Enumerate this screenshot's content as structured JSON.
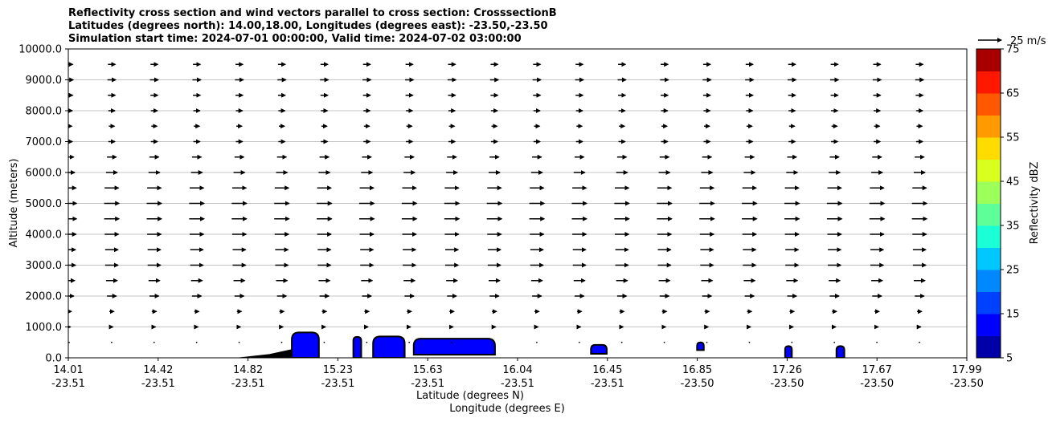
{
  "title_lines": [
    "Reflectivity cross section and wind vectors parallel to cross section: CrosssectionB",
    "Latitudes (degrees north): 14.00,18.00, Longitudes (degrees east): -23.50,-23.50",
    "Simulation start time: 2024-07-01 00:00:00, Valid time: 2024-07-02 03:00:00"
  ],
  "chart_data": {
    "type": "contour-quiver",
    "ylabel": "Altitude (meters)",
    "xlabel_lines": [
      "Latitude (degrees N)",
      "Longitude (degrees E)"
    ],
    "x_ticks": [
      {
        "lat": "14.01",
        "lon": "-23.51"
      },
      {
        "lat": "14.42",
        "lon": "-23.51"
      },
      {
        "lat": "14.82",
        "lon": "-23.51"
      },
      {
        "lat": "15.23",
        "lon": "-23.51"
      },
      {
        "lat": "15.63",
        "lon": "-23.51"
      },
      {
        "lat": "16.04",
        "lon": "-23.51"
      },
      {
        "lat": "16.45",
        "lon": "-23.51"
      },
      {
        "lat": "16.85",
        "lon": "-23.50"
      },
      {
        "lat": "17.26",
        "lon": "-23.50"
      },
      {
        "lat": "17.67",
        "lon": "-23.50"
      },
      {
        "lat": "17.99",
        "lon": "-23.50"
      }
    ],
    "xlim": [
      14.01,
      17.99
    ],
    "ylim": [
      0,
      10000
    ],
    "y_ticks": [
      0,
      1000,
      2000,
      3000,
      4000,
      5000,
      6000,
      7000,
      8000,
      9000,
      10000
    ],
    "y_tick_labels": [
      "0.0",
      "1000.0",
      "2000.0",
      "3000.0",
      "4000.0",
      "5000.0",
      "6000.0",
      "7000.0",
      "8000.0",
      "9000.0",
      "10000.0"
    ],
    "grid": "horizontal",
    "colorbar": {
      "label": "Reflectivity dBZ",
      "levels": [
        5,
        10,
        15,
        20,
        25,
        30,
        35,
        40,
        45,
        50,
        55,
        60,
        65,
        70,
        75
      ],
      "tick_values": [
        5,
        15,
        25,
        35,
        45,
        55,
        65,
        75
      ],
      "tick_labels": [
        "5",
        "15",
        "25",
        "35",
        "45",
        "55",
        "65",
        "75"
      ],
      "colors": [
        "#0000a8",
        "#0000ff",
        "#0040ff",
        "#0088ff",
        "#00c8ff",
        "#1affd6",
        "#5eff98",
        "#9cff5a",
        "#d8ff1e",
        "#ffdc00",
        "#ff9a00",
        "#ff5800",
        "#ff1800",
        "#a80000"
      ]
    },
    "quiver_key": {
      "label": "25 m/s",
      "speed": 25
    },
    "vector_altitudes": [
      500,
      1000,
      1500,
      2000,
      2500,
      3000,
      3500,
      4000,
      4500,
      5000,
      5500,
      6000,
      6500,
      7000,
      7500,
      8000,
      8500,
      9000,
      9500
    ],
    "vector_speeds": [
      2,
      3,
      5,
      10,
      12,
      14,
      14,
      15,
      16,
      16,
      15,
      12,
      10,
      7,
      6,
      7,
      8,
      9,
      8
    ],
    "terrain": {
      "lat": [
        14.75,
        14.9,
        15.0,
        15.05,
        15.08
      ],
      "alt": [
        0,
        120,
        280,
        380,
        0
      ]
    },
    "cells": [
      {
        "lat": 15.06,
        "alt_bottom": 0,
        "alt_top": 820,
        "width": 0.12,
        "dbz": 10
      },
      {
        "lat": 15.29,
        "alt_bottom": 0,
        "alt_top": 680,
        "width": 0.035,
        "dbz": 10
      },
      {
        "lat": 15.43,
        "alt_bottom": 0,
        "alt_top": 690,
        "width": 0.14,
        "dbz": 10
      },
      {
        "lat": 15.72,
        "alt_bottom": 100,
        "alt_top": 620,
        "width": 0.36,
        "dbz": 10
      },
      {
        "lat": 16.36,
        "alt_bottom": 130,
        "alt_top": 420,
        "width": 0.07,
        "dbz": 10
      },
      {
        "lat": 16.81,
        "alt_bottom": 250,
        "alt_top": 500,
        "width": 0.03,
        "dbz": 10
      },
      {
        "lat": 17.2,
        "alt_bottom": 0,
        "alt_top": 380,
        "width": 0.03,
        "dbz": 10
      },
      {
        "lat": 17.43,
        "alt_bottom": 0,
        "alt_top": 380,
        "width": 0.035,
        "dbz": 10
      }
    ]
  }
}
